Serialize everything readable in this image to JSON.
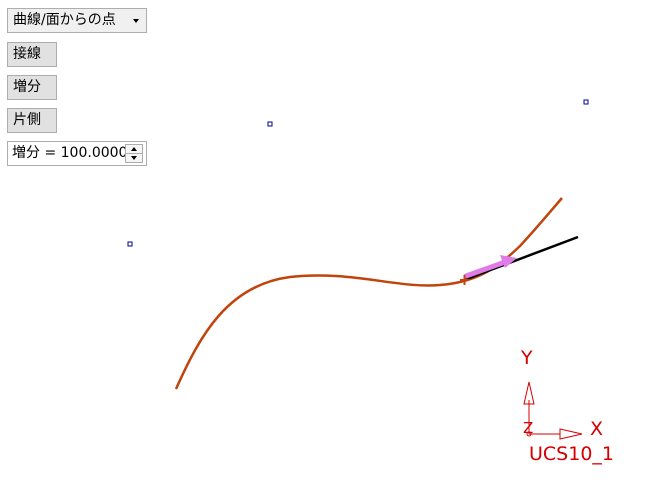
{
  "toolbar": {
    "mode_dropdown": {
      "selected": "曲線/面からの点"
    },
    "tangent_button": "接線",
    "increment_button": "増分",
    "one_side_button": "片側",
    "increment_field": {
      "label": "増分",
      "separator": " = ",
      "value": "100.0000"
    }
  },
  "viewport": {
    "curve_color": "#c0440c",
    "tangent_line_color": "#000000",
    "arrow_color": "#e07ce8",
    "control_point_color": "#00008b",
    "ucs": {
      "x_label": "X",
      "y_label": "Y",
      "z_label": "Z",
      "name": "UCS10_1",
      "color": "#d40000"
    }
  }
}
